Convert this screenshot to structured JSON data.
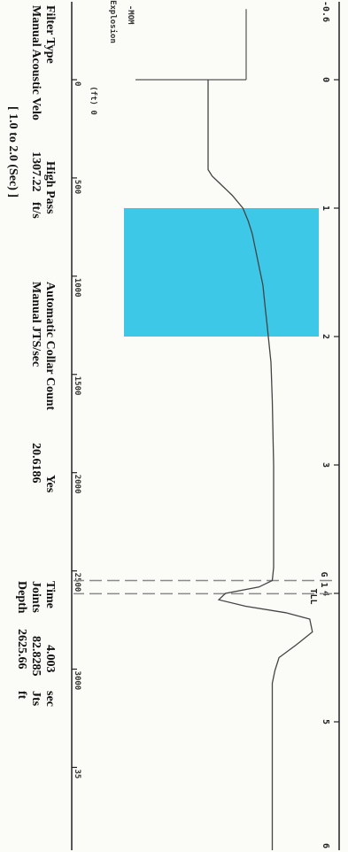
{
  "info": {
    "filter_type_label": "Filter Type",
    "filter_type_value": "High Pass",
    "velocity_label": "Manual Acoustic Velo",
    "velocity_value": "1307.22",
    "velocity_unit": "ft/s",
    "range_text": "[ 1.0 to 2.0 (Sec) ]",
    "collar_label": "Automatic Collar Count",
    "collar_value": "Yes",
    "jts_label": "Manual JTS/sec",
    "jts_value": "20.6186",
    "time_label": "Time",
    "time_value": "4.003",
    "time_unit": "sec",
    "joints_label": "Joints",
    "joints_value": "82.8285",
    "joints_unit": "Jts",
    "depth_label": "Depth",
    "depth_value": "2625.66",
    "depth_unit": "ft"
  },
  "chart_data": {
    "type": "line",
    "x_unit": "sec",
    "xlim": [
      -0.6,
      6.0
    ],
    "ylim": [
      -1.0,
      1.0
    ],
    "time_ticks": [
      "0",
      "1",
      "2",
      "3",
      "4",
      "5"
    ],
    "depth_ticks": [
      "0",
      "500",
      "1000",
      "1500",
      "2000",
      "2500",
      "3000",
      "35"
    ],
    "annotations": {
      "explosion": "Explosion",
      "explosion_sub": "(ft) 0",
      "mark_top": "-MOM",
      "top_tick": "-0.6",
      "cursor_top": "G 1",
      "cursor_bottom": "TLL"
    },
    "explosion_marker_time": 0.0,
    "selected_range": [
      1.0,
      2.0
    ],
    "cursor_times": [
      3.9,
      4.003
    ],
    "series": [
      {
        "x": [
          0.0,
          0.7,
          0.75,
          0.8,
          0.9,
          1.0,
          1.1,
          1.2,
          1.3,
          1.4,
          1.5,
          1.6,
          1.7,
          1.8,
          1.9,
          2.0,
          2.1,
          2.2,
          2.5,
          3.0,
          3.5,
          3.8,
          3.9,
          3.95,
          4.0,
          4.05,
          4.1,
          4.15,
          4.2,
          4.3,
          4.4,
          4.5,
          4.6,
          4.7,
          4.8,
          5.0,
          5.5,
          6.0
        ],
        "y": [
          0.02,
          0.02,
          0.05,
          0.1,
          0.2,
          0.28,
          0.32,
          0.35,
          0.37,
          0.39,
          0.41,
          0.43,
          0.44,
          0.45,
          0.46,
          0.47,
          0.48,
          0.49,
          0.5,
          0.51,
          0.51,
          0.51,
          0.5,
          0.4,
          0.15,
          0.1,
          0.3,
          0.6,
          0.78,
          0.8,
          0.68,
          0.55,
          0.52,
          0.5,
          0.5,
          0.5,
          0.5,
          0.5
        ]
      }
    ]
  }
}
